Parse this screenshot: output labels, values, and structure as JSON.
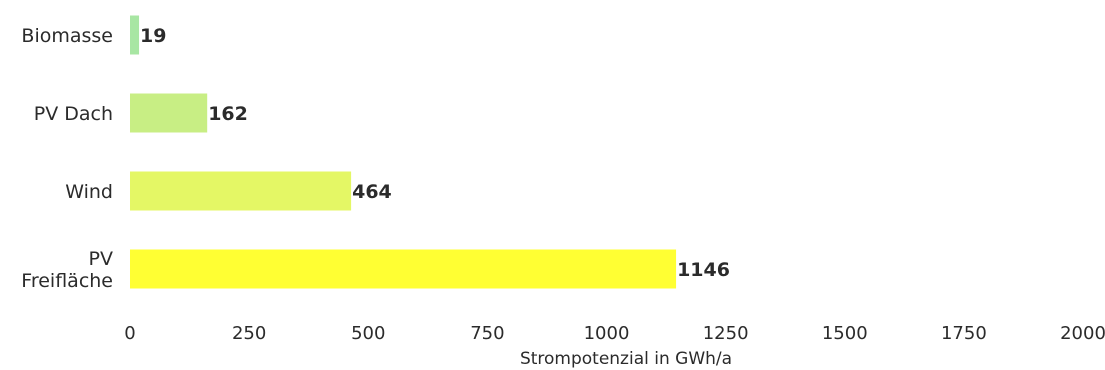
{
  "chart_data": {
    "type": "bar",
    "orientation": "horizontal",
    "title": "",
    "xlabel": "Strompotenzial in GWh/a",
    "ylabel": "",
    "categories": [
      "Biomasse",
      "PV Dach",
      "Wind",
      "PV Freifläche"
    ],
    "category_lines": [
      [
        "Biomasse"
      ],
      [
        "PV Dach"
      ],
      [
        "Wind"
      ],
      [
        "PV",
        "Freifläche"
      ]
    ],
    "values": [
      19,
      162,
      464,
      1146
    ],
    "value_labels": [
      "19",
      "162",
      "464",
      "1146"
    ],
    "colors": [
      "#a8e6a3",
      "#c8ee84",
      "#e4f765",
      "#ffff33"
    ],
    "xlim": [
      0,
      2000
    ],
    "xticks": [
      0,
      250,
      500,
      750,
      1000,
      1250,
      1500,
      1750,
      2000
    ],
    "xtick_labels": [
      "0",
      "250",
      "500",
      "750",
      "1000",
      "1250",
      "1500",
      "1750",
      "2000"
    ],
    "grid": false,
    "legend": "none"
  }
}
